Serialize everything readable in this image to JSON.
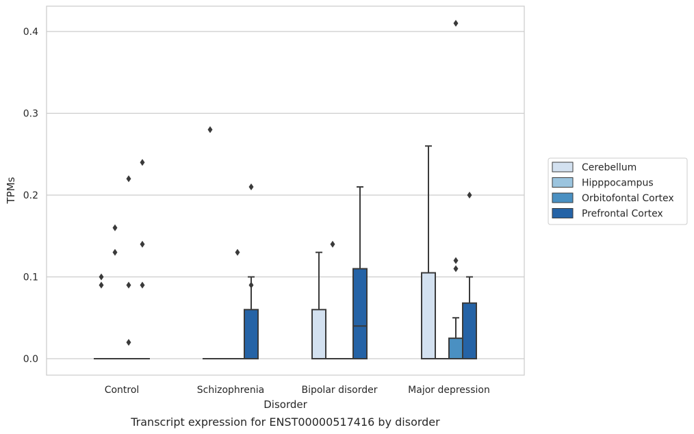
{
  "chart_data": {
    "type": "box",
    "title": "",
    "caption": "Transcript expression for ENST00000517416 by disorder",
    "xlabel": "Disorder",
    "ylabel": "TPMs",
    "ylim": [
      -0.02,
      0.43
    ],
    "yticks": [
      0.0,
      0.1,
      0.2,
      0.3,
      0.4
    ],
    "ytick_labels": [
      "0.0",
      "0.1",
      "0.2",
      "0.3",
      "0.4"
    ],
    "grid": "horizontal",
    "legend_position": "right",
    "categories": [
      "Control",
      "Schizophrenia",
      "Bipolar disorder",
      "Major depression"
    ],
    "series": [
      {
        "name": "Cerebellum",
        "color": "#d3e1f0",
        "boxes": [
          {
            "whisker_low": 0,
            "q1": 0,
            "median": 0,
            "q3": 0,
            "whisker_high": 0,
            "outliers": [
              0.1,
              0.09
            ]
          },
          {
            "whisker_low": 0,
            "q1": 0,
            "median": 0,
            "q3": 0,
            "whisker_high": 0,
            "outliers": [
              0.28
            ]
          },
          {
            "whisker_low": 0,
            "q1": 0,
            "median": 0,
            "q3": 0.06,
            "whisker_high": 0.13,
            "outliers": []
          },
          {
            "whisker_low": 0,
            "q1": 0,
            "median": 0,
            "q3": 0.105,
            "whisker_high": 0.26,
            "outliers": []
          }
        ]
      },
      {
        "name": "Hipppocampus",
        "color": "#9bc4de",
        "boxes": [
          {
            "whisker_low": 0,
            "q1": 0,
            "median": 0,
            "q3": 0,
            "whisker_high": 0,
            "outliers": [
              0.16,
              0.13
            ]
          },
          {
            "whisker_low": 0,
            "q1": 0,
            "median": 0,
            "q3": 0,
            "whisker_high": 0,
            "outliers": []
          },
          {
            "whisker_low": 0,
            "q1": 0,
            "median": 0,
            "q3": 0,
            "whisker_high": 0,
            "outliers": [
              0.14
            ]
          },
          {
            "whisker_low": 0,
            "q1": 0,
            "median": 0,
            "q3": 0,
            "whisker_high": 0,
            "outliers": []
          }
        ]
      },
      {
        "name": "Orbitofontal Cortex",
        "color": "#4a90c2",
        "boxes": [
          {
            "whisker_low": 0,
            "q1": 0,
            "median": 0,
            "q3": 0,
            "whisker_high": 0,
            "outliers": [
              0.22,
              0.09,
              0.02
            ]
          },
          {
            "whisker_low": 0,
            "q1": 0,
            "median": 0,
            "q3": 0,
            "whisker_high": 0,
            "outliers": [
              0.13
            ]
          },
          {
            "whisker_low": 0,
            "q1": 0,
            "median": 0,
            "q3": 0,
            "whisker_high": 0,
            "outliers": []
          },
          {
            "whisker_low": 0,
            "q1": 0,
            "median": 0,
            "q3": 0.025,
            "whisker_high": 0.05,
            "outliers": [
              0.41,
              0.12,
              0.11
            ]
          }
        ]
      },
      {
        "name": "Prefrontal Cortex",
        "color": "#2563a6",
        "boxes": [
          {
            "whisker_low": 0,
            "q1": 0,
            "median": 0,
            "q3": 0,
            "whisker_high": 0,
            "outliers": [
              0.24,
              0.14,
              0.09
            ]
          },
          {
            "whisker_low": 0,
            "q1": 0,
            "median": 0,
            "q3": 0.06,
            "whisker_high": 0.1,
            "outliers": [
              0.21,
              0.09
            ]
          },
          {
            "whisker_low": 0,
            "q1": 0,
            "median": 0.04,
            "q3": 0.11,
            "whisker_high": 0.21,
            "outliers": []
          },
          {
            "whisker_low": 0,
            "q1": 0,
            "median": 0,
            "q3": 0.068,
            "whisker_high": 0.1,
            "outliers": [
              0.2
            ]
          }
        ]
      }
    ]
  }
}
